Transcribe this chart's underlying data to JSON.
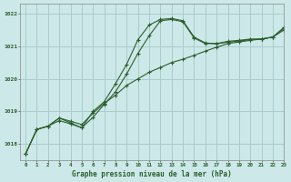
{
  "title": "Graphe pression niveau de la mer (hPa)",
  "bg_color": "#cce8e8",
  "grid_color": "#aacccc",
  "line_color": "#2d5e2d",
  "xlim": [
    -0.5,
    23
  ],
  "ylim": [
    1017.5,
    1022.3
  ],
  "yticks": [
    1018,
    1019,
    1020,
    1021,
    1022
  ],
  "xticks": [
    0,
    1,
    2,
    3,
    4,
    5,
    6,
    7,
    8,
    9,
    10,
    11,
    12,
    13,
    14,
    15,
    16,
    17,
    18,
    19,
    20,
    21,
    22,
    23
  ],
  "hours": [
    0,
    1,
    2,
    3,
    4,
    5,
    6,
    7,
    8,
    9,
    10,
    11,
    12,
    13,
    14,
    15,
    16,
    17,
    18,
    19,
    20,
    21,
    22,
    23
  ],
  "line1": [
    1017.7,
    1018.45,
    1018.55,
    1018.8,
    1018.7,
    1018.6,
    1018.95,
    1019.25,
    1019.5,
    1019.8,
    1020.0,
    1020.2,
    1020.35,
    1020.5,
    1020.6,
    1020.72,
    1020.85,
    1020.97,
    1021.08,
    1021.13,
    1021.18,
    1021.22,
    1021.28,
    1021.5
  ],
  "line2": [
    1017.7,
    1018.45,
    1018.55,
    1018.8,
    1018.65,
    1018.5,
    1019.0,
    1019.3,
    1019.85,
    1020.45,
    1021.2,
    1021.65,
    1021.82,
    1021.85,
    1021.78,
    1021.28,
    1021.1,
    1021.08,
    1021.12,
    1021.16,
    1021.2,
    1021.22,
    1021.28,
    1021.55
  ],
  "line3": [
    1017.7,
    1018.45,
    1018.55,
    1018.72,
    1018.62,
    1018.5,
    1018.82,
    1019.22,
    1019.6,
    1020.15,
    1020.78,
    1021.32,
    1021.78,
    1021.82,
    1021.75,
    1021.25,
    1021.08,
    1021.08,
    1021.15,
    1021.18,
    1021.22,
    1021.22,
    1021.28,
    1021.58
  ]
}
